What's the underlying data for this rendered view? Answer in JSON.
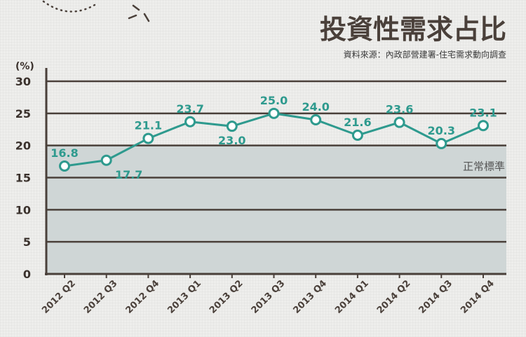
{
  "header": {
    "title": "投資性需求占比",
    "source": "資料來源：內政部營建署-住宅需求動向調查"
  },
  "chart_data": {
    "type": "line",
    "title": "投資性需求占比",
    "ylabel": "(%)",
    "ylim": [
      0,
      30
    ],
    "yticks": [
      0,
      5,
      10,
      15,
      20,
      25,
      30
    ],
    "grid": true,
    "categories": [
      "2012 Q2",
      "2012 Q3",
      "2012 Q4",
      "2013 Q1",
      "2013 Q2",
      "2013 Q3",
      "2013 Q4",
      "2014 Q1",
      "2014 Q2",
      "2014 Q3",
      "2014 Q4"
    ],
    "series": [
      {
        "values": [
          16.8,
          17.7,
          21.1,
          23.7,
          23.0,
          25.0,
          24.0,
          21.6,
          23.6,
          20.3,
          23.1
        ]
      }
    ],
    "labels": [
      "16.8",
      "17.7",
      "21.1",
      "23.7",
      "23.0",
      "25.0",
      "24.0",
      "21.6",
      "23.6",
      "20.3",
      "23.1"
    ],
    "band": {
      "from": 0,
      "to": 20,
      "label": "正常標準",
      "color": "#cfd6d6"
    },
    "colors": {
      "line": "#2e9a8e",
      "axis": "#4a403a",
      "label": "#2e9a8e"
    }
  }
}
